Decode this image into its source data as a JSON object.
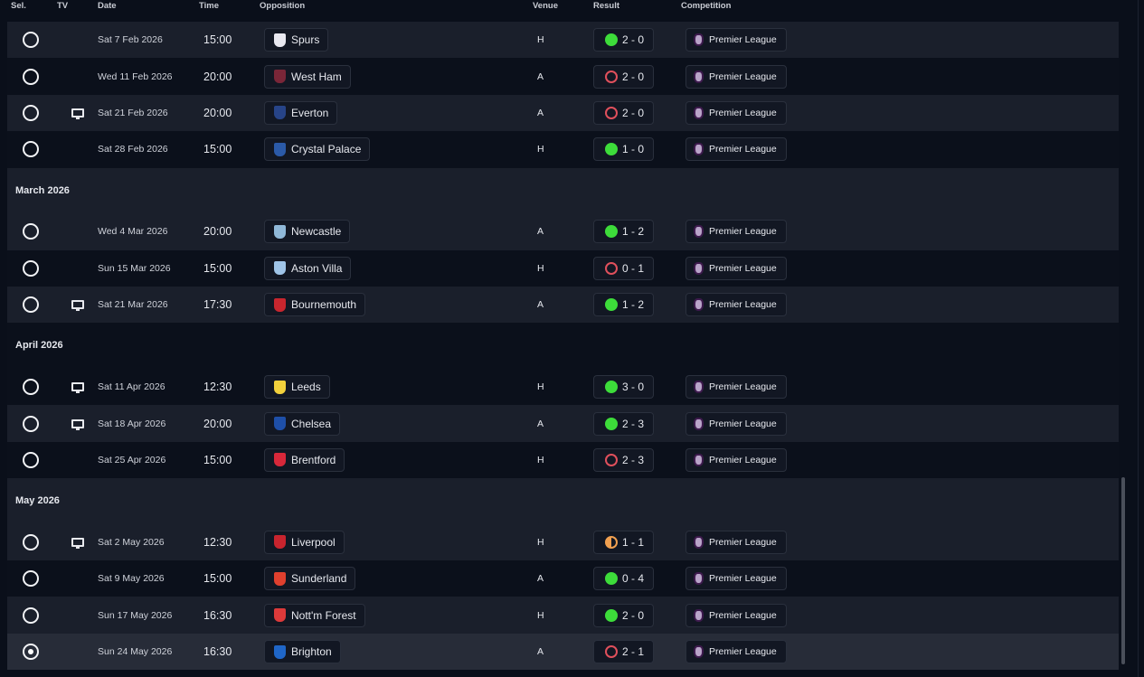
{
  "columns": {
    "sel": "Sel.",
    "tv": "TV",
    "date": "Date",
    "time": "Time",
    "opposition": "Opposition",
    "venue": "Venue",
    "result": "Result",
    "competition": "Competition"
  },
  "colors": {
    "win": "#3ddc3a",
    "loss": "#e0505c",
    "draw": "#f0a050"
  },
  "sections": [
    {
      "month": "",
      "fixtures": [
        {
          "tv": false,
          "date": "Sat 7 Feb 2026",
          "time": "15:00",
          "opp": "Spurs",
          "crest": "#e8e8f0",
          "venue": "H",
          "outcome": "win",
          "score": "2 - 0",
          "comp": "Premier League"
        },
        {
          "tv": false,
          "date": "Wed 11 Feb 2026",
          "time": "20:00",
          "opp": "West Ham",
          "crest": "#7a2638",
          "venue": "A",
          "outcome": "loss",
          "score": "2 - 0",
          "comp": "Premier League"
        },
        {
          "tv": true,
          "date": "Sat 21 Feb 2026",
          "time": "20:00",
          "opp": "Everton",
          "crest": "#274488",
          "venue": "A",
          "outcome": "loss",
          "score": "2 - 0",
          "comp": "Premier League"
        },
        {
          "tv": false,
          "date": "Sat 28 Feb 2026",
          "time": "15:00",
          "opp": "Crystal Palace",
          "crest": "#2b5aa8",
          "venue": "H",
          "outcome": "win",
          "score": "1 - 0",
          "comp": "Premier League"
        }
      ]
    },
    {
      "month": "March 2026",
      "fixtures": [
        {
          "tv": false,
          "date": "Wed 4 Mar 2026",
          "time": "20:00",
          "opp": "Newcastle",
          "crest": "#8fb8d8",
          "venue": "A",
          "outcome": "win",
          "score": "1 - 2",
          "comp": "Premier League"
        },
        {
          "tv": false,
          "date": "Sun 15 Mar 2026",
          "time": "15:00",
          "opp": "Aston Villa",
          "crest": "#9fc4e8",
          "venue": "H",
          "outcome": "loss",
          "score": "0 - 1",
          "comp": "Premier League"
        },
        {
          "tv": true,
          "date": "Sat 21 Mar 2026",
          "time": "17:30",
          "opp": "Bournemouth",
          "crest": "#c8262e",
          "venue": "A",
          "outcome": "win",
          "score": "1 - 2",
          "comp": "Premier League"
        }
      ]
    },
    {
      "month": "April 2026",
      "fixtures": [
        {
          "tv": true,
          "date": "Sat 11 Apr 2026",
          "time": "12:30",
          "opp": "Leeds",
          "crest": "#f2d13c",
          "venue": "H",
          "outcome": "win",
          "score": "3 - 0",
          "comp": "Premier League"
        },
        {
          "tv": true,
          "date": "Sat 18 Apr 2026",
          "time": "20:00",
          "opp": "Chelsea",
          "crest": "#1e4fa8",
          "venue": "A",
          "outcome": "win",
          "score": "2 - 3",
          "comp": "Premier League"
        },
        {
          "tv": false,
          "date": "Sat 25 Apr 2026",
          "time": "15:00",
          "opp": "Brentford",
          "crest": "#d8283a",
          "venue": "H",
          "outcome": "loss",
          "score": "2 - 3",
          "comp": "Premier League"
        }
      ]
    },
    {
      "month": "May 2026",
      "fixtures": [
        {
          "tv": true,
          "date": "Sat 2 May 2026",
          "time": "12:30",
          "opp": "Liverpool",
          "crest": "#c8242e",
          "venue": "H",
          "outcome": "draw",
          "score": "1 - 1",
          "comp": "Premier League"
        },
        {
          "tv": false,
          "date": "Sat 9 May 2026",
          "time": "15:00",
          "opp": "Sunderland",
          "crest": "#e0402e",
          "venue": "A",
          "outcome": "win",
          "score": "0 - 4",
          "comp": "Premier League"
        },
        {
          "tv": false,
          "date": "Sun 17 May 2026",
          "time": "16:30",
          "opp": "Nott'm Forest",
          "crest": "#dd3a3a",
          "venue": "H",
          "outcome": "win",
          "score": "2 - 0",
          "comp": "Premier League"
        },
        {
          "tv": false,
          "date": "Sun 24 May 2026",
          "time": "16:30",
          "opp": "Brighton",
          "crest": "#1f66c8",
          "venue": "A",
          "outcome": "loss",
          "score": "2 - 1",
          "comp": "Premier League",
          "selected": true
        }
      ]
    }
  ]
}
